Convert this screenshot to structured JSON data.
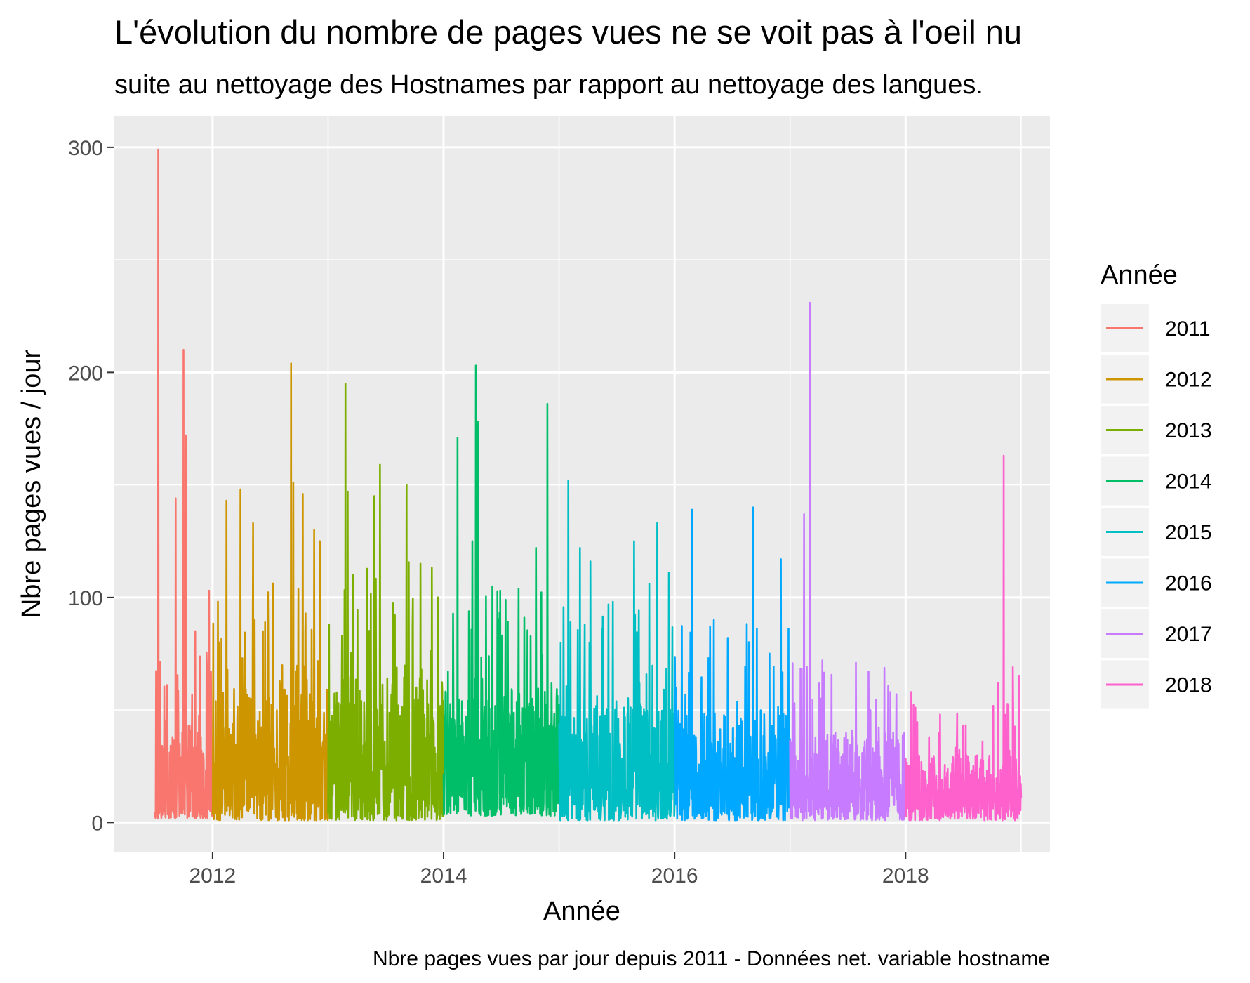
{
  "chart_data": {
    "type": "line",
    "title": "L'évolution du nombre de pages vues ne se voit pas à l'oeil nu",
    "subtitle": "suite au nettoyage des Hostnames par rapport au nettoyage des langues.",
    "xlabel": "Année",
    "ylabel": "Nbre pages vues / jour",
    "caption": "Nbre pages vues par jour depuis 2011 - Données net. variable hostname",
    "legend_title": "Année",
    "legend_position": "right",
    "grid": true,
    "xlim": [
      2011.15,
      2019.25
    ],
    "ylim": [
      -13,
      314
    ],
    "x_ticks": [
      2012,
      2014,
      2016,
      2018
    ],
    "x_tick_labels": [
      "2012",
      "2014",
      "2016",
      "2018"
    ],
    "y_ticks": [
      0,
      100,
      200,
      300
    ],
    "y_tick_labels": [
      "0",
      "100",
      "200",
      "300"
    ],
    "series": [
      {
        "name": "2011",
        "color": "#F8766D",
        "x_range": [
          2011.5,
          2012.0
        ],
        "peaks": [
          [
            2011.53,
            299
          ],
          [
            2011.75,
            210
          ],
          [
            2011.77,
            172
          ],
          [
            2011.68,
            144
          ],
          [
            2011.85,
            85
          ],
          [
            2011.97,
            103
          ]
        ],
        "baseline": [
          2,
          45
        ]
      },
      {
        "name": "2012",
        "color": "#CD9600",
        "x_range": [
          2012.0,
          2013.0
        ],
        "peaks": [
          [
            2012.12,
            143
          ],
          [
            2012.24,
            148
          ],
          [
            2012.35,
            133
          ],
          [
            2012.68,
            204
          ],
          [
            2012.7,
            151
          ],
          [
            2012.78,
            146
          ],
          [
            2012.88,
            130
          ],
          [
            2012.93,
            125
          ]
        ],
        "baseline": [
          1,
          60
        ]
      },
      {
        "name": "2013",
        "color": "#7CAE00",
        "x_range": [
          2013.0,
          2014.0
        ],
        "peaks": [
          [
            2013.15,
            195
          ],
          [
            2013.17,
            147
          ],
          [
            2013.4,
            145
          ],
          [
            2013.45,
            159
          ],
          [
            2013.68,
            150
          ],
          [
            2013.8,
            115
          ],
          [
            2013.95,
            100
          ]
        ],
        "baseline": [
          1,
          65
        ]
      },
      {
        "name": "2014",
        "color": "#00BE67",
        "x_range": [
          2014.0,
          2015.0
        ],
        "peaks": [
          [
            2014.12,
            171
          ],
          [
            2014.28,
            203
          ],
          [
            2014.3,
            178
          ],
          [
            2014.25,
            125
          ],
          [
            2014.8,
            122
          ],
          [
            2014.9,
            186
          ],
          [
            2014.7,
            91
          ]
        ],
        "baseline": [
          3,
          60
        ]
      },
      {
        "name": "2015",
        "color": "#00BFC4",
        "x_range": [
          2015.0,
          2016.0
        ],
        "peaks": [
          [
            2015.08,
            152
          ],
          [
            2015.18,
            122
          ],
          [
            2015.27,
            116
          ],
          [
            2015.65,
            125
          ],
          [
            2015.85,
            133
          ],
          [
            2015.95,
            111
          ],
          [
            2015.78,
            106
          ]
        ],
        "baseline": [
          1,
          55
        ]
      },
      {
        "name": "2016",
        "color": "#00A9FF",
        "x_range": [
          2016.0,
          2017.0
        ],
        "peaks": [
          [
            2016.15,
            139
          ],
          [
            2016.34,
            90
          ],
          [
            2016.68,
            140
          ],
          [
            2016.92,
            117
          ],
          [
            2016.46,
            82
          ]
        ],
        "baseline": [
          1,
          50
        ]
      },
      {
        "name": "2017",
        "color": "#C77CFF",
        "x_range": [
          2017.0,
          2018.0
        ],
        "peaks": [
          [
            2017.12,
            137
          ],
          [
            2017.17,
            231
          ],
          [
            2017.28,
            72
          ],
          [
            2017.57,
            71
          ],
          [
            2017.68,
            67
          ],
          [
            2017.92,
            57
          ]
        ],
        "baseline": [
          1,
          40
        ]
      },
      {
        "name": "2018",
        "color": "#FF61CC",
        "x_range": [
          2018.0,
          2019.0
        ],
        "peaks": [
          [
            2018.05,
            58
          ],
          [
            2018.3,
            48
          ],
          [
            2018.5,
            43
          ],
          [
            2018.8,
            62
          ],
          [
            2018.85,
            163
          ],
          [
            2018.93,
            69
          ],
          [
            2018.98,
            65
          ]
        ],
        "baseline": [
          1,
          30
        ]
      }
    ]
  }
}
